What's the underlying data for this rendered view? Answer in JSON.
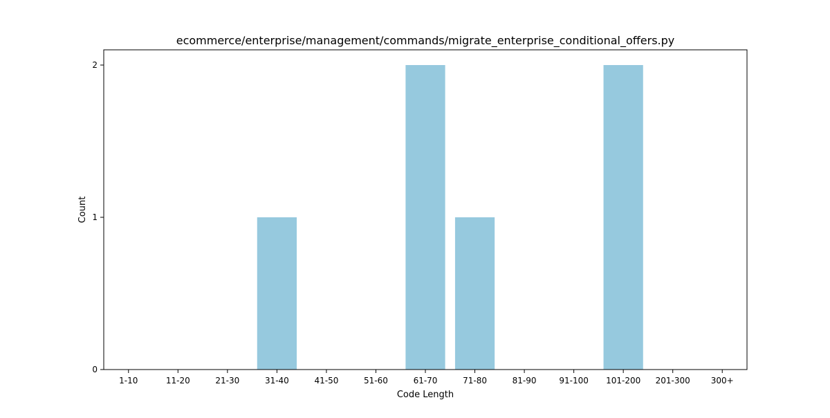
{
  "chart_data": {
    "type": "bar",
    "title": "ecommerce/enterprise/management/commands/migrate_enterprise_conditional_offers.py",
    "xlabel": "Code Length",
    "ylabel": "Count",
    "categories": [
      "1-10",
      "11-20",
      "21-30",
      "31-40",
      "41-50",
      "51-60",
      "61-70",
      "71-80",
      "81-90",
      "91-100",
      "101-200",
      "201-300",
      "300+"
    ],
    "values": [
      0,
      0,
      0,
      1,
      0,
      0,
      2,
      1,
      0,
      0,
      2,
      0,
      0
    ],
    "yticks": [
      0,
      1,
      2
    ],
    "ylim": [
      0,
      2.1
    ],
    "grid": false,
    "bar_color": "#96c9de"
  }
}
